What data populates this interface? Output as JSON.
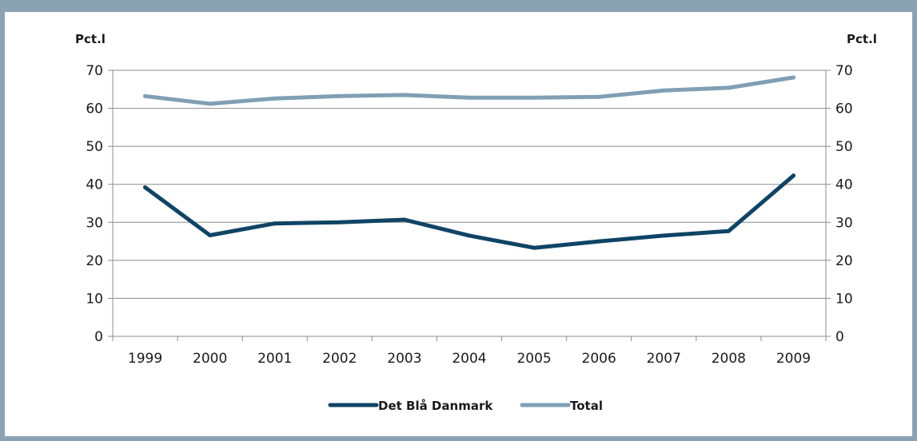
{
  "chart_data": {
    "type": "line",
    "title": "",
    "xlabel": "",
    "ylabel_left": "Pct.l",
    "ylabel_right": "Pct.l",
    "ylim": [
      0,
      70
    ],
    "yticks": [
      0,
      10,
      20,
      30,
      40,
      50,
      60,
      70
    ],
    "categories": [
      "1999",
      "2000",
      "2001",
      "2002",
      "2003",
      "2004",
      "2005",
      "2006",
      "2007",
      "2008",
      "2009"
    ],
    "grid": true,
    "legend_position": "bottom",
    "series": [
      {
        "name": "Det Blå Danmark",
        "color": "#0f4466",
        "values": [
          39.2,
          26.6,
          29.7,
          30.0,
          30.7,
          26.5,
          23.3,
          25.0,
          26.5,
          27.7,
          42.3
        ]
      },
      {
        "name": "Total",
        "color": "#7f9fb4",
        "values": [
          63.2,
          61.2,
          62.6,
          63.2,
          63.5,
          62.8,
          62.8,
          63.0,
          64.7,
          65.4,
          68.1
        ]
      }
    ]
  }
}
